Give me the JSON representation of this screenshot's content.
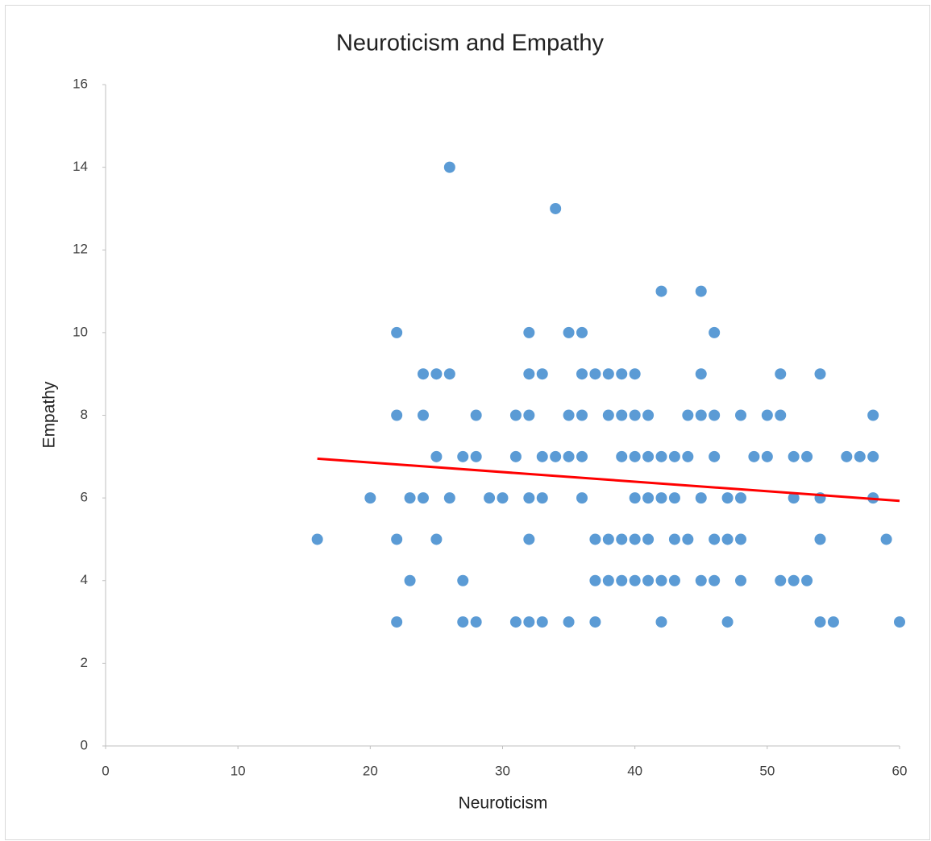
{
  "chart_data": {
    "type": "scatter",
    "title": "Neuroticism and Empathy",
    "x_label": "Neuroticism",
    "y_label": "Empathy",
    "series": [
      {
        "color": "#5b9bd5",
        "x": [
          16,
          20,
          22,
          22,
          22,
          22,
          23,
          23,
          24,
          24,
          24,
          25,
          25,
          25,
          26,
          26,
          26,
          27,
          27,
          27,
          28,
          28,
          28,
          29,
          30,
          31,
          31,
          31,
          32,
          32,
          32,
          32,
          32,
          32,
          33,
          33,
          33,
          33,
          34,
          34,
          35,
          35,
          35,
          35,
          36,
          36,
          36,
          36,
          36,
          37,
          37,
          37,
          37,
          38,
          38,
          38,
          38,
          39,
          39,
          39,
          39,
          39,
          40,
          40,
          40,
          40,
          40,
          40,
          41,
          41,
          41,
          41,
          41,
          42,
          42,
          42,
          42,
          42,
          43,
          43,
          43,
          43,
          44,
          44,
          44,
          45,
          45,
          45,
          45,
          45,
          46,
          46,
          46,
          46,
          46,
          47,
          47,
          47,
          48,
          48,
          48,
          48,
          49,
          50,
          50,
          51,
          51,
          51,
          52,
          52,
          52,
          53,
          53,
          54,
          54,
          54,
          54,
          55,
          56,
          57,
          58,
          58,
          58,
          59,
          60
        ],
        "values": [
          5,
          6,
          10,
          8,
          5,
          3,
          6,
          4,
          9,
          8,
          6,
          9,
          7,
          5,
          14,
          9,
          6,
          7,
          4,
          3,
          8,
          7,
          3,
          6,
          6,
          8,
          7,
          3,
          10,
          9,
          8,
          6,
          5,
          3,
          9,
          7,
          6,
          3,
          13,
          7,
          10,
          8,
          7,
          3,
          10,
          9,
          8,
          7,
          6,
          9,
          5,
          4,
          3,
          9,
          8,
          5,
          4,
          9,
          8,
          7,
          5,
          4,
          9,
          8,
          7,
          6,
          5,
          4,
          8,
          7,
          6,
          5,
          4,
          11,
          7,
          6,
          4,
          3,
          7,
          6,
          5,
          4,
          8,
          7,
          5,
          11,
          9,
          8,
          6,
          4,
          10,
          8,
          7,
          5,
          4,
          6,
          5,
          3,
          8,
          6,
          5,
          4,
          7,
          8,
          7,
          9,
          8,
          4,
          7,
          6,
          4,
          7,
          4,
          9,
          6,
          5,
          3,
          3,
          7,
          7,
          8,
          7,
          6,
          5,
          3
        ]
      }
    ],
    "trendline": {
      "x": [
        16,
        60
      ],
      "values": [
        6.95,
        5.93
      ],
      "color": "#ff0000"
    },
    "xlim": [
      0,
      60
    ],
    "xticks": [
      0,
      10,
      20,
      30,
      40,
      50,
      60
    ],
    "ylim": [
      0,
      16
    ],
    "yticks": [
      0,
      2,
      4,
      6,
      8,
      10,
      12,
      14,
      16
    ],
    "grid": false
  }
}
